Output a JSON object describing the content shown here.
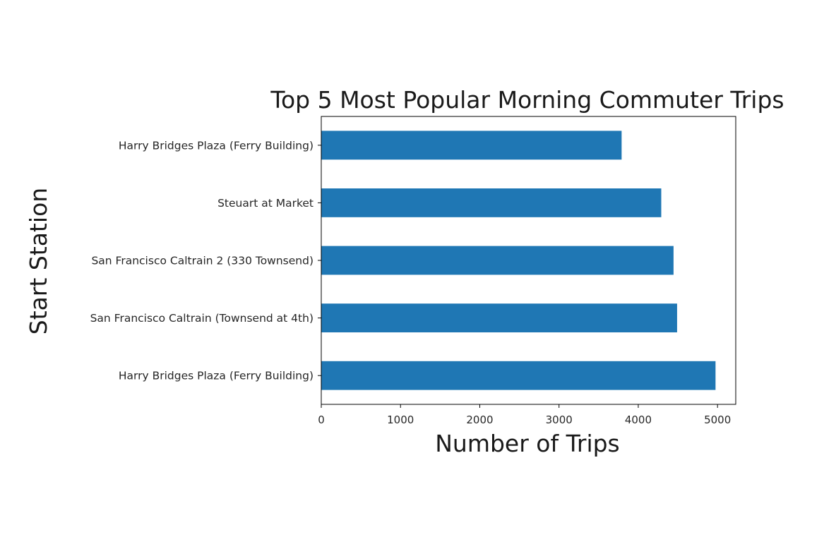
{
  "chart_data": {
    "type": "bar",
    "orientation": "horizontal",
    "title": "Top 5 Most Popular Morning Commuter Trips",
    "xlabel": "Number of Trips",
    "ylabel": "Start Station",
    "categories": [
      "Harry Bridges Plaza (Ferry Building)",
      "San Francisco Caltrain (Townsend at 4th)",
      "San Francisco Caltrain 2 (330 Townsend)",
      "Steuart at Market",
      "Harry Bridges Plaza (Ferry Building)"
    ],
    "values": [
      4975,
      4490,
      4445,
      4290,
      3790
    ],
    "xlim": [
      0,
      5230
    ],
    "xticks": [
      0,
      1000,
      2000,
      3000,
      4000,
      5000
    ],
    "grid": false,
    "legend": "none",
    "bar_color": "#1f77b4"
  }
}
